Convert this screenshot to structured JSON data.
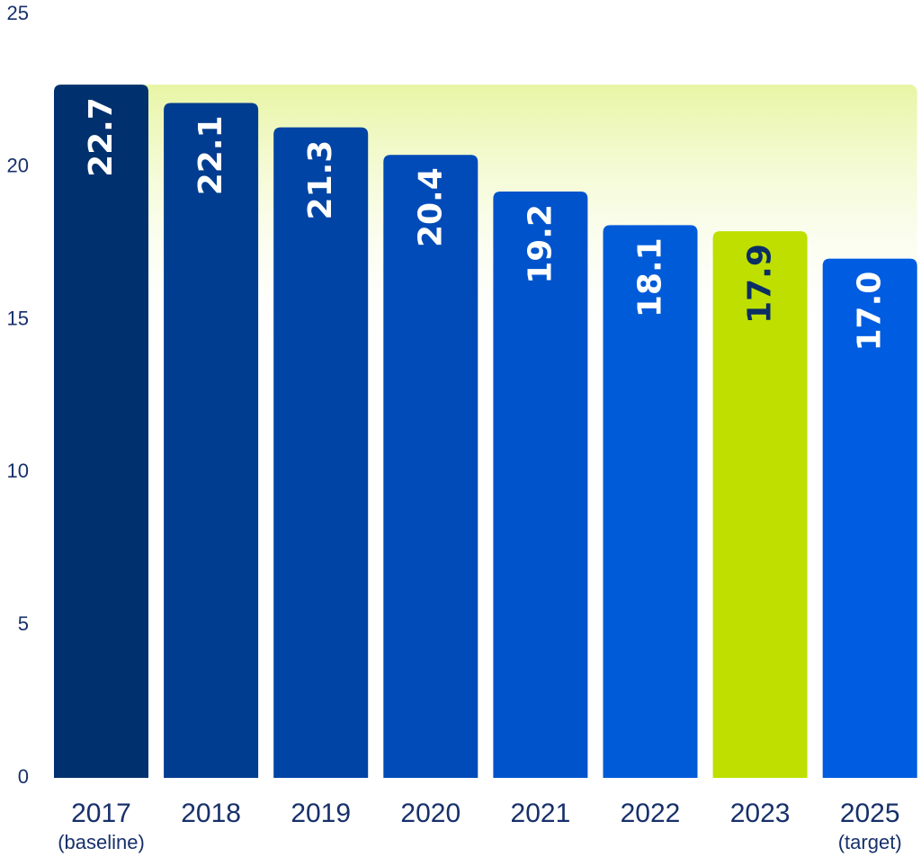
{
  "chart_data": {
    "type": "bar",
    "categories": [
      "2017",
      "2018",
      "2019",
      "2020",
      "2021",
      "2022",
      "2023",
      "2025"
    ],
    "category_sublabels": [
      "(baseline)",
      "",
      "",
      "",
      "",
      "",
      "",
      "(target)"
    ],
    "values": [
      22.7,
      22.1,
      21.3,
      20.4,
      19.2,
      18.1,
      17.9,
      17.0
    ],
    "value_labels": [
      "22.7",
      "22.1",
      "21.3",
      "20.4",
      "19.2",
      "18.1",
      "17.9",
      "17.0"
    ],
    "bar_colors": [
      "#00316e",
      "#003c8f",
      "#0044a5",
      "#004bb8",
      "#0053cb",
      "#005bd9",
      "#bedf00",
      "#005ce0"
    ],
    "value_label_colors": [
      "#ffffff",
      "#ffffff",
      "#ffffff",
      "#ffffff",
      "#ffffff",
      "#ffffff",
      "#0b2e64",
      "#ffffff"
    ],
    "title": "",
    "xlabel": "",
    "ylabel": "",
    "ylim": [
      0,
      25
    ],
    "yticks": [
      0,
      5,
      10,
      15,
      20,
      25
    ],
    "grid": false,
    "background_gradient": [
      "#e8f5a4",
      "#ffffff"
    ]
  }
}
